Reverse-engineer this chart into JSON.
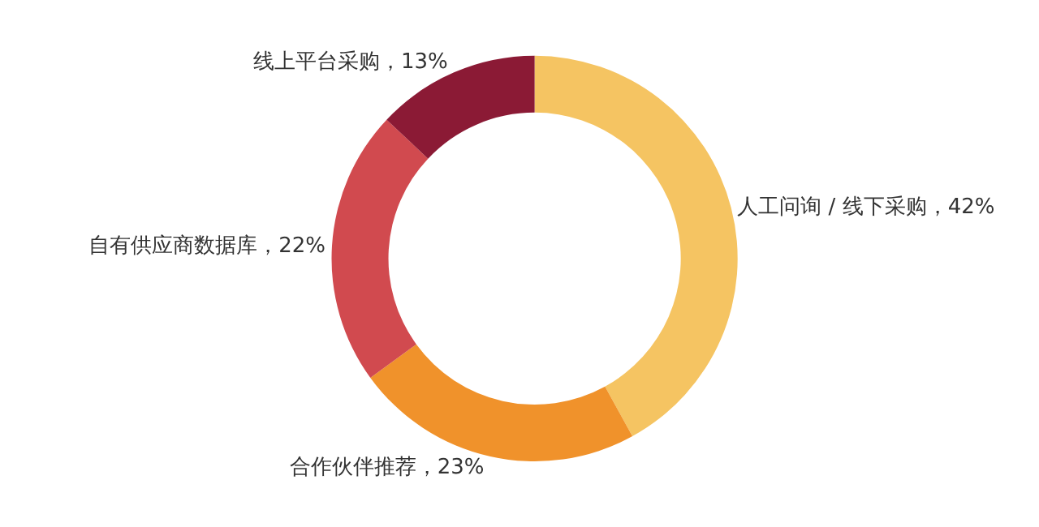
{
  "chart_data": {
    "type": "donut",
    "categories": [
      "人工问询 / 线下采购",
      "合作伙伴推荐",
      "自有供应商数据库",
      "线上平台采购"
    ],
    "values": [
      42,
      23,
      22,
      13
    ],
    "colors": [
      "#f5c462",
      "#f0922b",
      "#d14a4f",
      "#8b1a35"
    ],
    "value_labels": [
      "42%",
      "23%",
      "22%",
      "13%"
    ]
  }
}
